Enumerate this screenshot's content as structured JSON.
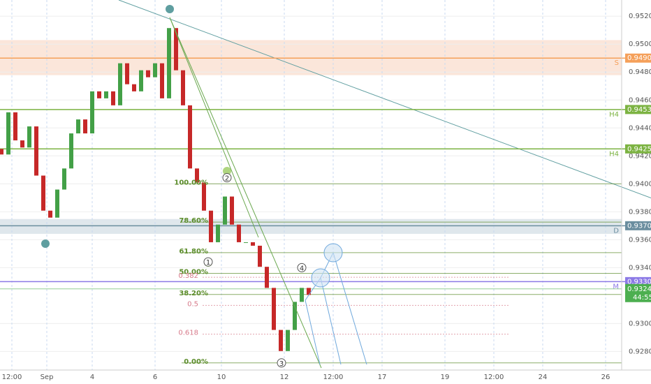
{
  "chart_data": {
    "type": "candlestick",
    "open": [
      0.9425,
      0.9421,
      0.94512,
      0.94311,
      0.9426,
      0.94411,
      0.94059,
      0.93808,
      0.93758,
      0.93959,
      0.9411,
      0.94361,
      0.94461,
      0.94361,
      0.94662,
      0.94612,
      0.94662,
      0.94562,
      0.94863,
      0.94713,
      0.94662,
      0.94813,
      0.94763,
      0.94863,
      0.94612,
      0.95115,
      0.94813,
      0.94562,
      0.9411,
      0.94009,
      0.93808,
      0.93582,
      0.93708,
      0.93909,
      0.93708,
      0.93582,
      0.93582,
      0.93557,
      0.93406,
      0.93255,
      0.92954,
      0.92803,
      0.92954,
      0.93155,
      0.93255
    ],
    "close": [
      0.9421,
      0.94512,
      0.94311,
      0.9426,
      0.94411,
      0.94059,
      0.93808,
      0.93758,
      0.93959,
      0.9411,
      0.94361,
      0.94461,
      0.94361,
      0.94662,
      0.94612,
      0.94662,
      0.94562,
      0.94863,
      0.94713,
      0.94662,
      0.94813,
      0.94763,
      0.94863,
      0.94612,
      0.95115,
      0.94813,
      0.94562,
      0.9411,
      0.94009,
      0.93808,
      0.93582,
      0.93708,
      0.93909,
      0.93708,
      0.93582,
      0.93582,
      0.93557,
      0.93406,
      0.93255,
      0.92954,
      0.92803,
      0.92954,
      0.93155,
      0.93255,
      0.93205
    ],
    "up_color": "#43a047",
    "down_color": "#c62828",
    "xlim": [
      -0.2,
      88.8
    ],
    "xticks": [
      {
        "value": 1.5,
        "label": "12:00"
      },
      {
        "value": 6.5,
        "label": "Sep"
      },
      {
        "value": 13,
        "label": "4"
      },
      {
        "value": 22,
        "label": "6"
      },
      {
        "value": 31.5,
        "label": "10"
      },
      {
        "value": 40.5,
        "label": "12"
      },
      {
        "value": 47.5,
        "label": "12:00"
      },
      {
        "value": 54.5,
        "label": "17"
      },
      {
        "value": 63.5,
        "label": "19"
      },
      {
        "value": 70.5,
        "label": "12:00"
      },
      {
        "value": 77.5,
        "label": "24"
      },
      {
        "value": 86.5,
        "label": "26"
      }
    ],
    "ylim": [
      0.92667,
      0.95316
    ],
    "yticks": [
      {
        "value": 0.952,
        "label": "0.95200"
      },
      {
        "value": 0.95,
        "label": "0.95000"
      },
      {
        "value": 0.948,
        "label": "0.94800"
      },
      {
        "value": 0.946,
        "label": "0.94600"
      },
      {
        "value": 0.944,
        "label": "0.94400"
      },
      {
        "value": 0.942,
        "label": "0.94200"
      },
      {
        "value": 0.94,
        "label": "0.94000"
      },
      {
        "value": 0.938,
        "label": "0.93800"
      },
      {
        "value": 0.936,
        "label": "0.93600"
      },
      {
        "value": 0.934,
        "label": "0.93400"
      },
      {
        "value": 0.93,
        "label": "0.93000"
      },
      {
        "value": 0.928,
        "label": "0.92800"
      }
    ],
    "zones": [
      {
        "from": 0.94778,
        "to": 0.95029,
        "color": "#fbe6da"
      },
      {
        "from": 0.93642,
        "to": 0.93748,
        "color": "#dfe7ec"
      }
    ],
    "levels": [
      {
        "value": 0.949,
        "label": "0.94900",
        "tag": "S",
        "color": "#f5a05a"
      },
      {
        "value": 0.94532,
        "label": "0.94532",
        "tag": "H4",
        "color": "#7cb342"
      },
      {
        "value": 0.9425,
        "label": "0.94250",
        "tag": "H4",
        "color": "#7cb342"
      },
      {
        "value": 0.937,
        "label": "0.93700",
        "tag": "D",
        "color": "#6b8e9f"
      },
      {
        "value": 0.933,
        "label": "0.93300",
        "tag": "M",
        "color": "#8c7ae6"
      }
    ],
    "fib": {
      "color": "#5b8c2a",
      "levels": [
        {
          "value": 0.94,
          "label": "100.00%"
        },
        {
          "value": 0.93726,
          "label": "78.60%"
        },
        {
          "value": 0.93507,
          "label": "61.80%"
        },
        {
          "value": 0.93359,
          "label": "50.00%"
        },
        {
          "value": 0.93208,
          "label": "38.20%"
        },
        {
          "value": 0.92718,
          "label": "0.00%"
        }
      ]
    },
    "projection": {
      "color": "#d77a8a",
      "levels": [
        {
          "value": 0.93331,
          "label": "0.382"
        },
        {
          "value": 0.9313,
          "label": "0.5"
        },
        {
          "value": 0.92924,
          "label": "0.618"
        }
      ]
    },
    "waves": [
      {
        "label": "1",
        "x": 29.6,
        "y": 0.93441
      },
      {
        "label": "2",
        "x": 32.3,
        "y": 0.94044
      },
      {
        "label": "3",
        "x": 40.1,
        "y": 0.92718
      },
      {
        "label": "4",
        "x": 43,
        "y": 0.934
      }
    ],
    "trendline": {
      "x": [
        16.8,
        93
      ],
      "y": [
        0.95316,
        0.93899
      ],
      "color": "#5f9ea0"
    },
    "last": {
      "value": 0.93248,
      "label": "0.93248",
      "countdown": "44:55",
      "color": "#4caf50"
    }
  }
}
